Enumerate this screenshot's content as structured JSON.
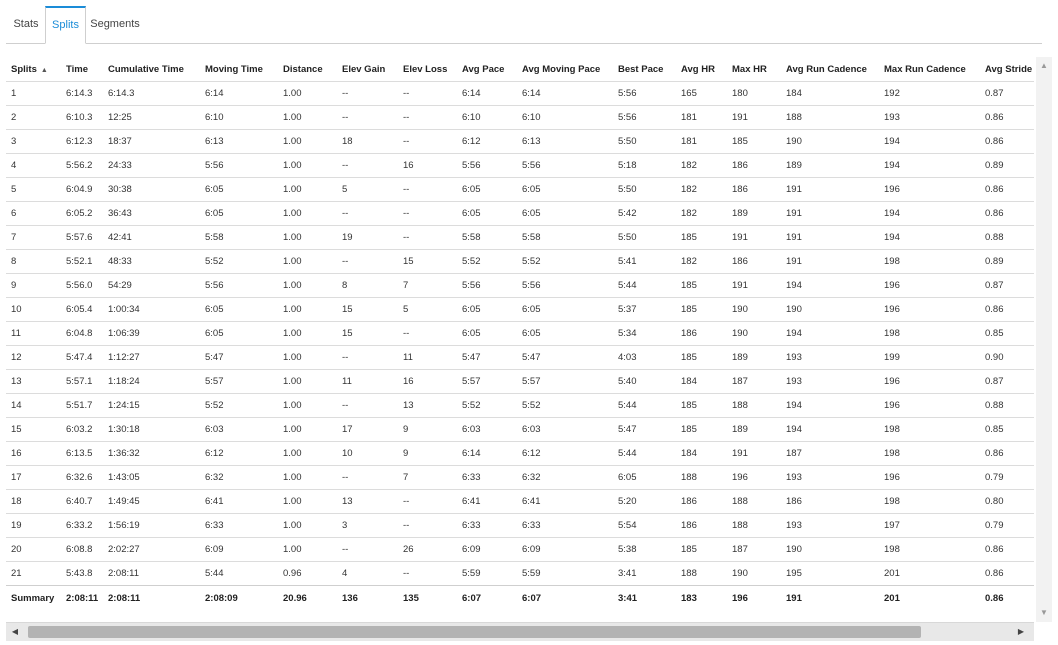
{
  "tabs": [
    {
      "label": "Stats"
    },
    {
      "label": "Splits",
      "active": true
    },
    {
      "label": "Segments"
    }
  ],
  "table": {
    "sort_indicator": "▲",
    "headers": [
      "Splits",
      "Time",
      "Cumulative Time",
      "Moving Time",
      "Distance",
      "Elev Gain",
      "Elev Loss",
      "Avg Pace",
      "Avg Moving Pace",
      "Best Pace",
      "Avg HR",
      "Max HR",
      "Avg Run Cadence",
      "Max Run Cadence",
      "Avg Stride"
    ],
    "rows": [
      [
        "1",
        "6:14.3",
        "6:14.3",
        "6:14",
        "1.00",
        "--",
        "--",
        "6:14",
        "6:14",
        "5:56",
        "165",
        "180",
        "184",
        "192",
        "0.87"
      ],
      [
        "2",
        "6:10.3",
        "12:25",
        "6:10",
        "1.00",
        "--",
        "--",
        "6:10",
        "6:10",
        "5:56",
        "181",
        "191",
        "188",
        "193",
        "0.86"
      ],
      [
        "3",
        "6:12.3",
        "18:37",
        "6:13",
        "1.00",
        "18",
        "--",
        "6:12",
        "6:13",
        "5:50",
        "181",
        "185",
        "190",
        "194",
        "0.86"
      ],
      [
        "4",
        "5:56.2",
        "24:33",
        "5:56",
        "1.00",
        "--",
        "16",
        "5:56",
        "5:56",
        "5:18",
        "182",
        "186",
        "189",
        "194",
        "0.89"
      ],
      [
        "5",
        "6:04.9",
        "30:38",
        "6:05",
        "1.00",
        "5",
        "--",
        "6:05",
        "6:05",
        "5:50",
        "182",
        "186",
        "191",
        "196",
        "0.86"
      ],
      [
        "6",
        "6:05.2",
        "36:43",
        "6:05",
        "1.00",
        "--",
        "--",
        "6:05",
        "6:05",
        "5:42",
        "182",
        "189",
        "191",
        "194",
        "0.86"
      ],
      [
        "7",
        "5:57.6",
        "42:41",
        "5:58",
        "1.00",
        "19",
        "--",
        "5:58",
        "5:58",
        "5:50",
        "185",
        "191",
        "191",
        "194",
        "0.88"
      ],
      [
        "8",
        "5:52.1",
        "48:33",
        "5:52",
        "1.00",
        "--",
        "15",
        "5:52",
        "5:52",
        "5:41",
        "182",
        "186",
        "191",
        "198",
        "0.89"
      ],
      [
        "9",
        "5:56.0",
        "54:29",
        "5:56",
        "1.00",
        "8",
        "7",
        "5:56",
        "5:56",
        "5:44",
        "185",
        "191",
        "194",
        "196",
        "0.87"
      ],
      [
        "10",
        "6:05.4",
        "1:00:34",
        "6:05",
        "1.00",
        "15",
        "5",
        "6:05",
        "6:05",
        "5:37",
        "185",
        "190",
        "190",
        "196",
        "0.86"
      ],
      [
        "11",
        "6:04.8",
        "1:06:39",
        "6:05",
        "1.00",
        "15",
        "--",
        "6:05",
        "6:05",
        "5:34",
        "186",
        "190",
        "194",
        "198",
        "0.85"
      ],
      [
        "12",
        "5:47.4",
        "1:12:27",
        "5:47",
        "1.00",
        "--",
        "11",
        "5:47",
        "5:47",
        "4:03",
        "185",
        "189",
        "193",
        "199",
        "0.90"
      ],
      [
        "13",
        "5:57.1",
        "1:18:24",
        "5:57",
        "1.00",
        "11",
        "16",
        "5:57",
        "5:57",
        "5:40",
        "184",
        "187",
        "193",
        "196",
        "0.87"
      ],
      [
        "14",
        "5:51.7",
        "1:24:15",
        "5:52",
        "1.00",
        "--",
        "13",
        "5:52",
        "5:52",
        "5:44",
        "185",
        "188",
        "194",
        "196",
        "0.88"
      ],
      [
        "15",
        "6:03.2",
        "1:30:18",
        "6:03",
        "1.00",
        "17",
        "9",
        "6:03",
        "6:03",
        "5:47",
        "185",
        "189",
        "194",
        "198",
        "0.85"
      ],
      [
        "16",
        "6:13.5",
        "1:36:32",
        "6:12",
        "1.00",
        "10",
        "9",
        "6:14",
        "6:12",
        "5:44",
        "184",
        "191",
        "187",
        "198",
        "0.86"
      ],
      [
        "17",
        "6:32.6",
        "1:43:05",
        "6:32",
        "1.00",
        "--",
        "7",
        "6:33",
        "6:32",
        "6:05",
        "188",
        "196",
        "193",
        "196",
        "0.79"
      ],
      [
        "18",
        "6:40.7",
        "1:49:45",
        "6:41",
        "1.00",
        "13",
        "--",
        "6:41",
        "6:41",
        "5:20",
        "186",
        "188",
        "186",
        "198",
        "0.80"
      ],
      [
        "19",
        "6:33.2",
        "1:56:19",
        "6:33",
        "1.00",
        "3",
        "--",
        "6:33",
        "6:33",
        "5:54",
        "186",
        "188",
        "193",
        "197",
        "0.79"
      ],
      [
        "20",
        "6:08.8",
        "2:02:27",
        "6:09",
        "1.00",
        "--",
        "26",
        "6:09",
        "6:09",
        "5:38",
        "185",
        "187",
        "190",
        "198",
        "0.86"
      ],
      [
        "21",
        "5:43.8",
        "2:08:11",
        "5:44",
        "0.96",
        "4",
        "--",
        "5:59",
        "5:59",
        "3:41",
        "188",
        "190",
        "195",
        "201",
        "0.86"
      ]
    ],
    "summary": [
      "Summary",
      "2:08:11",
      "2:08:11",
      "2:08:09",
      "20.96",
      "136",
      "135",
      "6:07",
      "6:07",
      "3:41",
      "183",
      "196",
      "191",
      "201",
      "0.86"
    ]
  },
  "scrollbars": {
    "up_icon": "▲",
    "down_icon": "▼",
    "left_icon": "◀",
    "right_icon": "▶"
  },
  "colors": {
    "accent": "#1a8cd8"
  }
}
